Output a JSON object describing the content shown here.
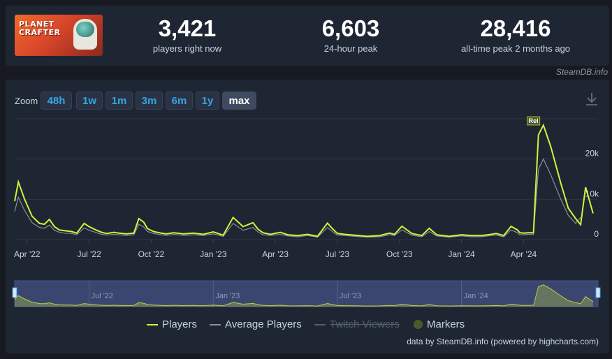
{
  "game": {
    "logo_text": "PLANET CRAFTER"
  },
  "stats": [
    {
      "value": "3,421",
      "label": "players right now"
    },
    {
      "value": "6,603",
      "label": "24-hour peak"
    },
    {
      "value": "28,416",
      "label": "all-time peak 2 months ago"
    }
  ],
  "credit": "SteamDB.info",
  "zoom": {
    "label": "Zoom",
    "buttons": [
      "48h",
      "1w",
      "1m",
      "3m",
      "6m",
      "1y",
      "max"
    ],
    "active": "max"
  },
  "icons": {
    "download": "download-icon"
  },
  "colors": {
    "players": "#d4f23b",
    "average": "#8a8f96",
    "accent": "#35a4e8",
    "marker": "#4c5a2a"
  },
  "legend": [
    {
      "label": "Players",
      "state": "on"
    },
    {
      "label": "Average Players",
      "state": "on"
    },
    {
      "label": "Twitch Viewers",
      "state": "off"
    },
    {
      "label": "Markers",
      "state": "on"
    }
  ],
  "credits_text": "data by SteamDB.info (powered by highcharts.com)",
  "chart_data": {
    "type": "line",
    "ylim": [
      0,
      30000
    ],
    "y_ticks": [
      0,
      10000,
      20000
    ],
    "y_tick_labels": [
      "0",
      "10k",
      "20k"
    ],
    "x_ticks": [
      {
        "label": "Apr '22",
        "x": 2022.25
      },
      {
        "label": "Jul '22",
        "x": 2022.5
      },
      {
        "label": "Oct '22",
        "x": 2022.75
      },
      {
        "label": "Jan '23",
        "x": 2023.0
      },
      {
        "label": "Apr '23",
        "x": 2023.25
      },
      {
        "label": "Jul '23",
        "x": 2023.5
      },
      {
        "label": "Oct '23",
        "x": 2023.75
      },
      {
        "label": "Jan '24",
        "x": 2024.0
      },
      {
        "label": "Apr '24",
        "x": 2024.25
      }
    ],
    "navigator_ticks": [
      {
        "label": "Jul '22",
        "x": 2022.5
      },
      {
        "label": "Jan '23",
        "x": 2023.0
      },
      {
        "label": "Jul '23",
        "x": 2023.5
      },
      {
        "label": "Jan '24",
        "x": 2024.0
      }
    ],
    "xlim": [
      2022.2,
      2024.55
    ],
    "markers": [
      {
        "label": "Rel",
        "x": 2024.29
      }
    ],
    "series": [
      {
        "name": "Players",
        "x": [
          2022.2,
          2022.215,
          2022.24,
          2022.27,
          2022.3,
          2022.32,
          2022.34,
          2022.36,
          2022.38,
          2022.4,
          2022.43,
          2022.45,
          2022.48,
          2022.5,
          2022.53,
          2022.55,
          2022.57,
          2022.6,
          2022.62,
          2022.65,
          2022.68,
          2022.7,
          2022.72,
          2022.735,
          2022.76,
          2022.79,
          2022.81,
          2022.84,
          2022.88,
          2022.92,
          2022.96,
          2023.0,
          2023.04,
          2023.08,
          2023.12,
          2023.16,
          2023.18,
          2023.2,
          2023.23,
          2023.27,
          2023.3,
          2023.34,
          2023.38,
          2023.42,
          2023.46,
          2023.48,
          2023.5,
          2023.53,
          2023.57,
          2023.62,
          2023.67,
          2023.71,
          2023.73,
          2023.76,
          2023.8,
          2023.84,
          2023.87,
          2023.9,
          2023.95,
          2024.0,
          2024.04,
          2024.08,
          2024.12,
          2024.14,
          2024.17,
          2024.2,
          2024.225,
          2024.235,
          2024.25,
          2024.27,
          2024.29,
          2024.31,
          2024.33,
          2024.36,
          2024.4,
          2024.43,
          2024.46,
          2024.48,
          2024.5,
          2024.53
        ],
        "values": [
          9500,
          14300,
          10000,
          5800,
          4000,
          3800,
          5000,
          3200,
          2400,
          2200,
          2000,
          1600,
          4000,
          3200,
          2300,
          1800,
          1500,
          1800,
          1600,
          1400,
          1600,
          5200,
          4300,
          2700,
          2000,
          1600,
          1400,
          1700,
          1400,
          1600,
          1300,
          1900,
          1100,
          5500,
          3200,
          4200,
          2600,
          1700,
          1300,
          1800,
          1200,
          1000,
          1300,
          800,
          4100,
          2700,
          1500,
          1300,
          1100,
          800,
          1000,
          1600,
          1300,
          3300,
          1500,
          1000,
          2800,
          1200,
          800,
          1200,
          1000,
          1000,
          1300,
          1500,
          1000,
          3300,
          2400,
          1700,
          1600,
          1700,
          1700,
          26000,
          28400,
          23000,
          14000,
          7800,
          5200,
          3700,
          13000,
          6500
        ]
      },
      {
        "name": "Average Players",
        "x": [
          2022.2,
          2022.215,
          2022.24,
          2022.27,
          2022.3,
          2022.32,
          2022.34,
          2022.36,
          2022.38,
          2022.4,
          2022.43,
          2022.45,
          2022.48,
          2022.5,
          2022.53,
          2022.55,
          2022.57,
          2022.6,
          2022.62,
          2022.65,
          2022.68,
          2022.7,
          2022.72,
          2022.735,
          2022.76,
          2022.79,
          2022.81,
          2022.84,
          2022.88,
          2022.92,
          2022.96,
          2023.0,
          2023.04,
          2023.08,
          2023.12,
          2023.16,
          2023.18,
          2023.2,
          2023.23,
          2023.27,
          2023.3,
          2023.34,
          2023.38,
          2023.42,
          2023.46,
          2023.48,
          2023.5,
          2023.53,
          2023.57,
          2023.62,
          2023.67,
          2023.71,
          2023.73,
          2023.76,
          2023.8,
          2023.84,
          2023.87,
          2023.9,
          2023.95,
          2024.0,
          2024.04,
          2024.08,
          2024.12,
          2024.14,
          2024.17,
          2024.2,
          2024.225,
          2024.235,
          2024.25,
          2024.27,
          2024.29,
          2024.31,
          2024.33,
          2024.36,
          2024.4,
          2024.43,
          2024.46,
          2024.48
        ],
        "values": [
          7000,
          10500,
          7200,
          4200,
          3000,
          2800,
          3600,
          2300,
          1800,
          1600,
          1500,
          1200,
          2900,
          2300,
          1700,
          1300,
          1100,
          1300,
          1200,
          1000,
          1200,
          3800,
          3100,
          2000,
          1500,
          1200,
          1000,
          1300,
          1000,
          1200,
          1000,
          1400,
          800,
          4000,
          2300,
          3000,
          1900,
          1200,
          1000,
          1300,
          900,
          700,
          1000,
          600,
          3000,
          2000,
          1100,
          1000,
          800,
          600,
          700,
          1200,
          1000,
          2400,
          1100,
          700,
          2000,
          900,
          600,
          900,
          700,
          700,
          1000,
          1100,
          700,
          2400,
          1700,
          1200,
          1200,
          1300,
          1300,
          17500,
          20000,
          16000,
          10000,
          6000,
          4000,
          5500
        ]
      }
    ]
  }
}
